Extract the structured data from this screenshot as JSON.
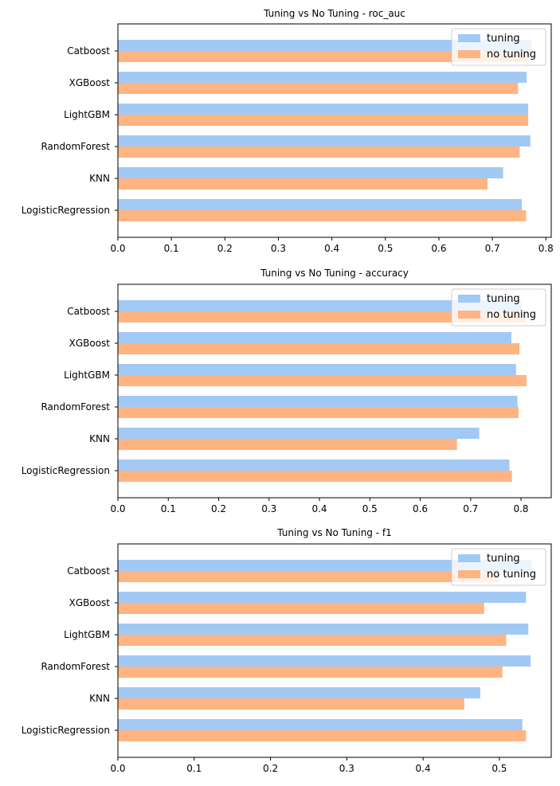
{
  "colors": {
    "tuning": "#a1c9f4",
    "no_tuning": "#ffb482",
    "axis": "#000000",
    "legend_border": "#cccccc"
  },
  "chart_data": [
    {
      "type": "bar",
      "orientation": "horizontal",
      "title": "Tuning vs No Tuning - roc_auc",
      "xlabel": "",
      "ylabel": "",
      "xlim": [
        0,
        0.81
      ],
      "xticks": [
        "0.0",
        "0.1",
        "0.2",
        "0.3",
        "0.4",
        "0.5",
        "0.6",
        "0.7",
        "0.8"
      ],
      "categories": [
        "LogisticRegression",
        "KNN",
        "RandomForest",
        "LightGBM",
        "XGBoost",
        "Catboost"
      ],
      "legend_position": "top-right",
      "series": [
        {
          "name": "tuning",
          "values": [
            0.755,
            0.72,
            0.771,
            0.767,
            0.764,
            0.773
          ]
        },
        {
          "name": "no tuning",
          "values": [
            0.763,
            0.691,
            0.751,
            0.767,
            0.748,
            0.77
          ]
        }
      ]
    },
    {
      "type": "bar",
      "orientation": "horizontal",
      "title": "Tuning vs No Tuning - accuracy",
      "xlabel": "",
      "ylabel": "",
      "xlim": [
        0,
        0.86
      ],
      "xticks": [
        "0.0",
        "0.1",
        "0.2",
        "0.3",
        "0.4",
        "0.5",
        "0.6",
        "0.7",
        "0.8"
      ],
      "categories": [
        "LogisticRegression",
        "KNN",
        "RandomForest",
        "LightGBM",
        "XGBoost",
        "Catboost"
      ],
      "legend_position": "top-right",
      "series": [
        {
          "name": "tuning",
          "values": [
            0.777,
            0.717,
            0.793,
            0.79,
            0.781,
            0.8
          ]
        },
        {
          "name": "no tuning",
          "values": [
            0.782,
            0.673,
            0.795,
            0.811,
            0.797,
            0.81
          ]
        }
      ]
    },
    {
      "type": "bar",
      "orientation": "horizontal",
      "title": "Tuning vs No Tuning - f1",
      "xlabel": "",
      "ylabel": "",
      "xlim": [
        0,
        0.568
      ],
      "xticks": [
        "0.0",
        "0.1",
        "0.2",
        "0.3",
        "0.4",
        "0.5"
      ],
      "categories": [
        "LogisticRegression",
        "KNN",
        "RandomForest",
        "LightGBM",
        "XGBoost",
        "Catboost"
      ],
      "legend_position": "top-right",
      "series": [
        {
          "name": "tuning",
          "values": [
            0.53,
            0.475,
            0.541,
            0.538,
            0.535,
            0.542
          ]
        },
        {
          "name": "no tuning",
          "values": [
            0.535,
            0.454,
            0.504,
            0.509,
            0.48,
            0.5
          ]
        }
      ]
    }
  ]
}
